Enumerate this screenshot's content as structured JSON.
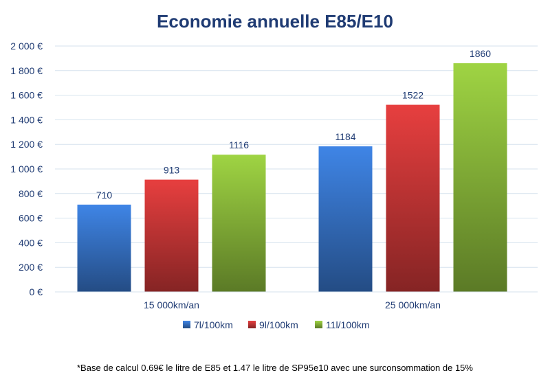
{
  "chart_data": {
    "type": "bar",
    "title": "Economie annuelle E85/E10",
    "categories": [
      "15 000km/an",
      "25 000km/an"
    ],
    "series": [
      {
        "name": "7l/100km",
        "values": [
          710,
          1184
        ],
        "color": "#3a7bd5"
      },
      {
        "name": "9l/100km",
        "values": [
          913,
          1522
        ],
        "color": "#d63a3a"
      },
      {
        "name": "11l/100km",
        "values": [
          1116,
          1860
        ],
        "color": "#93c43e"
      }
    ],
    "ylim": [
      0,
      2000
    ],
    "yticks": [
      0,
      200,
      400,
      600,
      800,
      1000,
      1200,
      1400,
      1600,
      1800,
      2000
    ],
    "ytick_labels": [
      "0 €",
      "200 €",
      "400 €",
      "600 €",
      "800 €",
      "1 000 €",
      "1 200 €",
      "1 400 €",
      "1 600 €",
      "1 800 €",
      "2 000 €"
    ],
    "grid": true,
    "legend_position": "bottom",
    "data_labels": true
  },
  "footnote": "*Base de calcul 0.69€ le litre de E85 et 1.47 le litre de SP95e10 avec une surconsommation de 15%"
}
